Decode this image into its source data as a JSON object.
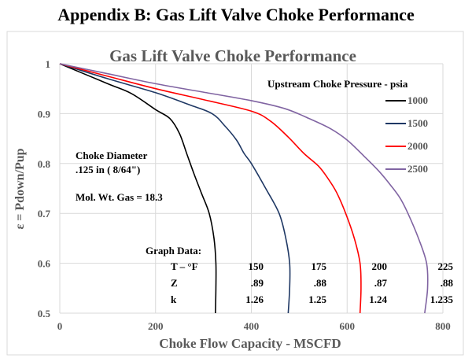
{
  "page_title": "Appendix B: Gas Lift Valve Choke Performance",
  "chart_data": {
    "type": "line",
    "title": "Gas Lift Valve Choke Performance",
    "xlabel": "Choke Flow Capacity - MSCFD",
    "ylabel": "ε = Pdown/Pup",
    "xlim": [
      0,
      800
    ],
    "ylim": [
      0.5,
      1
    ],
    "xticks": [
      "0",
      "200",
      "400",
      "600",
      "800"
    ],
    "yticks": [
      "0.5",
      "0.6",
      "0.7",
      "0.8",
      "0.9",
      "1"
    ],
    "grid": true,
    "legend_title": "Upstream Choke Pressure - psia",
    "legend_position": "top-right",
    "series": [
      {
        "name": "1000",
        "color": "#000000",
        "points": [
          [
            0,
            1
          ],
          [
            100,
            0.96
          ],
          [
            150,
            0.94
          ],
          [
            200,
            0.908
          ],
          [
            230,
            0.89
          ],
          [
            250,
            0.86
          ],
          [
            265,
            0.82
          ],
          [
            280,
            0.78
          ],
          [
            296,
            0.74
          ],
          [
            312,
            0.7
          ],
          [
            322,
            0.65
          ],
          [
            326,
            0.6
          ],
          [
            326,
            0.55
          ],
          [
            325,
            0.5
          ]
        ]
      },
      {
        "name": "1500",
        "color": "#1f3864",
        "points": [
          [
            0,
            1
          ],
          [
            100,
            0.97
          ],
          [
            200,
            0.942
          ],
          [
            270,
            0.918
          ],
          [
            318,
            0.9
          ],
          [
            345,
            0.875
          ],
          [
            369,
            0.847
          ],
          [
            385,
            0.82
          ],
          [
            400,
            0.8
          ],
          [
            430,
            0.75
          ],
          [
            458,
            0.7
          ],
          [
            472,
            0.65
          ],
          [
            480,
            0.6
          ],
          [
            480,
            0.55
          ],
          [
            477,
            0.5
          ]
        ]
      },
      {
        "name": "2000",
        "color": "#ff0000",
        "points": [
          [
            0,
            1
          ],
          [
            100,
            0.975
          ],
          [
            200,
            0.95
          ],
          [
            300,
            0.928
          ],
          [
            400,
            0.905
          ],
          [
            440,
            0.885
          ],
          [
            477,
            0.853
          ],
          [
            510,
            0.82
          ],
          [
            540,
            0.795
          ],
          [
            560,
            0.77
          ],
          [
            578,
            0.742
          ],
          [
            597,
            0.7
          ],
          [
            615,
            0.65
          ],
          [
            627,
            0.6
          ],
          [
            629,
            0.55
          ],
          [
            627,
            0.5
          ]
        ]
      },
      {
        "name": "2500",
        "color": "#8064a2",
        "points": [
          [
            0,
            1
          ],
          [
            100,
            0.98
          ],
          [
            200,
            0.96
          ],
          [
            300,
            0.943
          ],
          [
            400,
            0.926
          ],
          [
            470,
            0.91
          ],
          [
            521,
            0.89
          ],
          [
            565,
            0.87
          ],
          [
            600,
            0.847
          ],
          [
            635,
            0.815
          ],
          [
            667,
            0.784
          ],
          [
            692,
            0.755
          ],
          [
            711,
            0.73
          ],
          [
            727,
            0.7
          ],
          [
            749,
            0.65
          ],
          [
            766,
            0.6
          ],
          [
            768,
            0.55
          ],
          [
            762,
            0.5
          ]
        ]
      }
    ],
    "annotations": {
      "choke_diameter_label": "Choke Diameter",
      "choke_diameter_value": ".125 in ( 8/64\")",
      "mol_wt": "Mol. Wt. Gas = 18.3",
      "graph_data_title": "Graph Data:",
      "table": {
        "row_labels": [
          "T – °F",
          "Z",
          "k"
        ],
        "columns": [
          [
            "150",
            ".89",
            "1.26"
          ],
          [
            "175",
            ".88",
            "1.25"
          ],
          [
            "200",
            ".87",
            "1.24"
          ],
          [
            "225",
            ".88",
            "1.235"
          ]
        ]
      }
    }
  }
}
